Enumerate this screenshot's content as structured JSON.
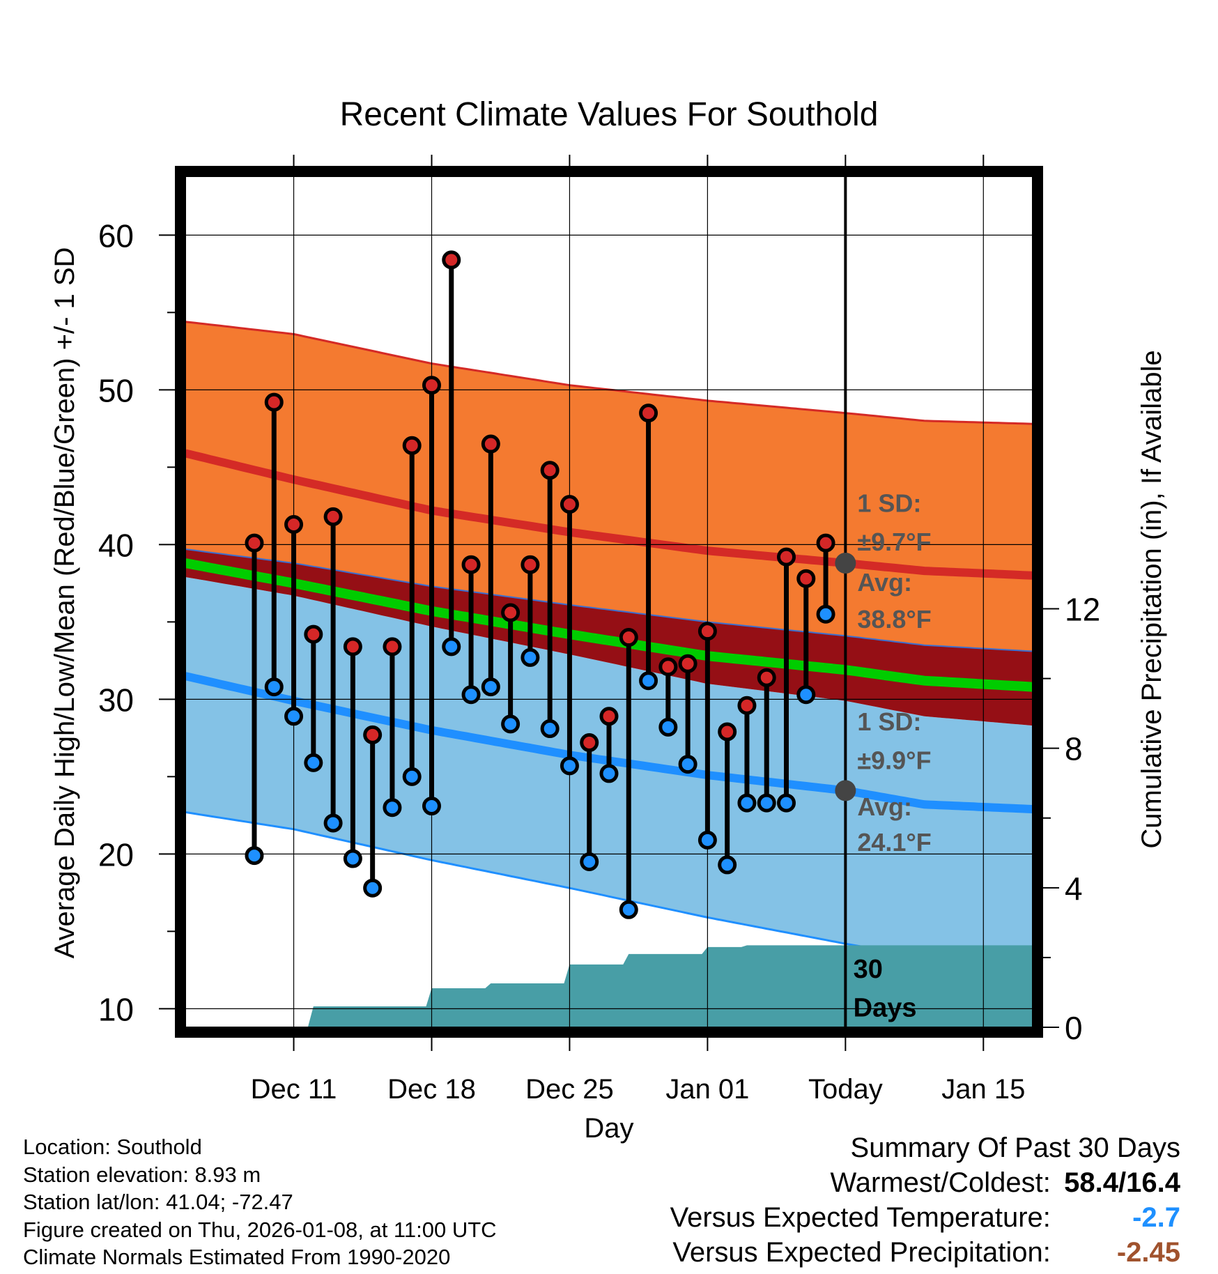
{
  "chart_data": {
    "type": "line",
    "title": "Recent Climate Values For Southold",
    "xlabel": "Day",
    "ylabel_left": "Average Daily High/Low/Mean (Red/Blue/Green) +/- 1 SD",
    "ylabel_right": "Cumulative Precipitation (in), If Available",
    "x_range_days": [
      -33.5,
      9.5
    ],
    "ylim_left": [
      8.8,
      63.8
    ],
    "ylim_right": [
      0,
      24.4
    ],
    "y_ticks_left": [
      "10",
      "20",
      "30",
      "40",
      "50",
      "60"
    ],
    "y_ticks_right": [
      "0",
      "4",
      "8",
      "12"
    ],
    "x_ticks": [
      {
        "day": -28,
        "label": "Dec 11"
      },
      {
        "day": -21,
        "label": "Dec 18"
      },
      {
        "day": -14,
        "label": "Dec 25"
      },
      {
        "day": -7,
        "label": "Jan 01"
      },
      {
        "day": 0,
        "label": "Today"
      },
      {
        "day": 7,
        "label": "Jan 15"
      }
    ],
    "days_offset": [
      -30,
      -29,
      -28,
      -27,
      -26,
      -25,
      -24,
      -23,
      -22,
      -21,
      -20,
      -19,
      -18,
      -17,
      -16,
      -15,
      -14,
      -13,
      -12,
      -11,
      -10,
      -9,
      -8,
      -7,
      -6,
      -5,
      -4,
      -3,
      -2,
      -1
    ],
    "highs": [
      40.1,
      49.2,
      41.3,
      34.2,
      41.8,
      33.4,
      27.7,
      33.4,
      46.4,
      50.3,
      58.4,
      38.7,
      46.5,
      35.6,
      38.7,
      44.8,
      42.6,
      27.2,
      28.9,
      34.0,
      48.5,
      32.1,
      32.3,
      34.4,
      27.9,
      29.6,
      31.4,
      39.2,
      37.8,
      40.1
    ],
    "lows": [
      19.9,
      30.8,
      28.9,
      25.9,
      22.0,
      19.7,
      17.8,
      23.0,
      25.0,
      23.1,
      33.4,
      30.3,
      30.8,
      28.4,
      32.7,
      28.1,
      25.7,
      19.5,
      25.2,
      16.4,
      31.2,
      28.2,
      25.8,
      20.9,
      19.3,
      23.3,
      23.3,
      23.3,
      30.3,
      35.5
    ],
    "normal_curve_days": [
      -33.5,
      -28,
      -21,
      -14,
      -7,
      0,
      4,
      9.5
    ],
    "normal_high": [
      45.9,
      44.2,
      42.2,
      40.8,
      39.6,
      38.8,
      38.3,
      38.0
    ],
    "normal_high_upper": [
      54.4,
      53.6,
      51.7,
      50.3,
      49.3,
      48.5,
      48.0,
      47.8
    ],
    "normal_low": [
      31.5,
      29.9,
      28.0,
      26.4,
      25.1,
      24.1,
      23.2,
      22.9
    ],
    "normal_low_lower": [
      22.7,
      21.6,
      19.6,
      17.8,
      15.9,
      14.2,
      13.3,
      12.8
    ],
    "normal_mean_upper": [
      39.7,
      38.8,
      37.3,
      36.1,
      35.0,
      34.1,
      33.5,
      33.1
    ],
    "normal_mean": [
      38.8,
      37.5,
      35.7,
      34.2,
      32.8,
      31.9,
      31.2,
      30.8
    ],
    "normal_mean_lower": [
      37.9,
      36.7,
      34.7,
      32.9,
      31.0,
      29.9,
      28.9,
      28.3
    ],
    "precip_steps": [
      {
        "day": -27.5,
        "value": 0.0
      },
      {
        "day": -27,
        "value": 0.6
      },
      {
        "day": -21,
        "value": 1.12
      },
      {
        "day": -18,
        "value": 1.26
      },
      {
        "day": -14,
        "value": 1.8
      },
      {
        "day": -11,
        "value": 2.1
      },
      {
        "day": -7,
        "value": 2.3
      },
      {
        "day": -5,
        "value": 2.35
      },
      {
        "day": 9.5,
        "value": 2.35
      }
    ],
    "annotations": {
      "high_sd_label": "1 SD:",
      "high_sd_value": "±9.7°F",
      "high_avg_label": "Avg:",
      "high_avg_value": "38.8°F",
      "low_sd_label": "1 SD:",
      "low_sd_value": "±9.9°F",
      "low_avg_label": "Avg:",
      "low_avg_value": "24.1°F",
      "window_label_1": "30",
      "window_label_2": "Days"
    },
    "colors": {
      "high_band": "#f47a30",
      "high_line": "#d42a26",
      "mean_band": "#950f15",
      "mean_line": "#00cc00",
      "low_band": "#84c2e6",
      "low_line": "#1f8fff",
      "precip": "#489ea6",
      "high_marker": "#d52727",
      "low_marker": "#1e90ff",
      "annotation": "#555555"
    }
  },
  "info": {
    "location": "Location: Southold",
    "elevation": "Station elevation: 8.93 m",
    "latlon": "Station lat/lon: 41.04; -72.47",
    "created": "Figure created on Thu, 2026-01-08, at 11:00 UTC",
    "normals": "Climate Normals Estimated From 1990-2020"
  },
  "summary": {
    "title": "Summary Of Past 30 Days",
    "warm_cold_label": "Warmest/Coldest:",
    "warm_cold_value": "58.4/16.4",
    "temp_label": "Versus Expected Temperature:",
    "temp_value": "-2.7",
    "temp_color": "#1e90ff",
    "precip_label": "Versus Expected Precipitation:",
    "precip_value": "-2.45",
    "precip_color": "#a0522d"
  }
}
